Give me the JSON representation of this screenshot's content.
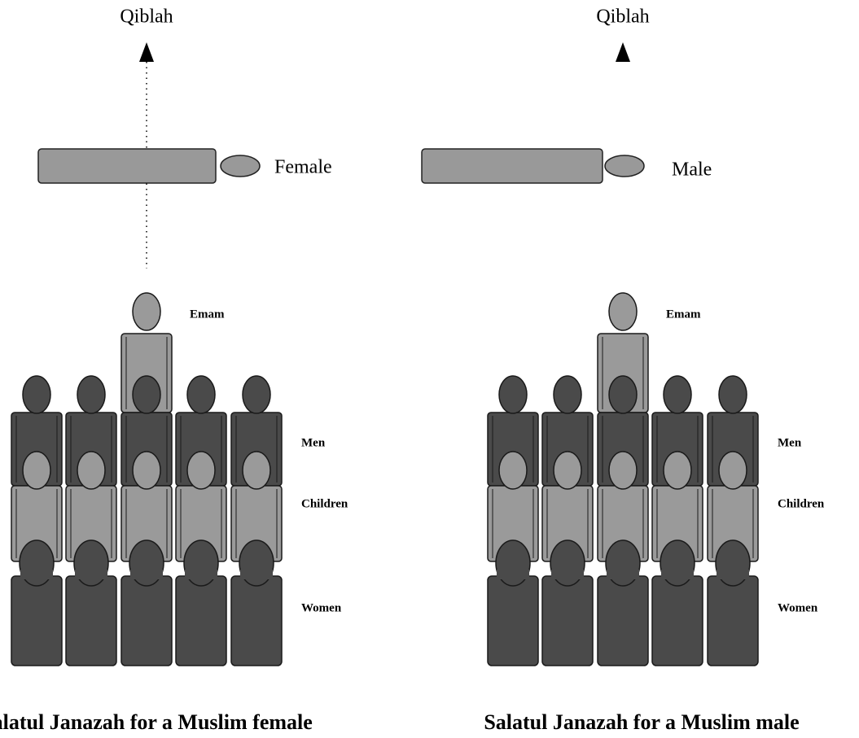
{
  "panels": [
    {
      "qiblah": "Qiblah",
      "body_label": "Female",
      "rows": {
        "emam": "Emam",
        "men": "Men",
        "children": "Children",
        "women": "Women"
      },
      "caption": "Salatul Janazah for a Muslim female"
    },
    {
      "qiblah": "Qiblah",
      "body_label": "Male",
      "rows": {
        "emam": "Emam",
        "men": "Men",
        "children": "Children",
        "women": "Women"
      },
      "caption": "Salatul Janazah for a Muslim male"
    }
  ]
}
